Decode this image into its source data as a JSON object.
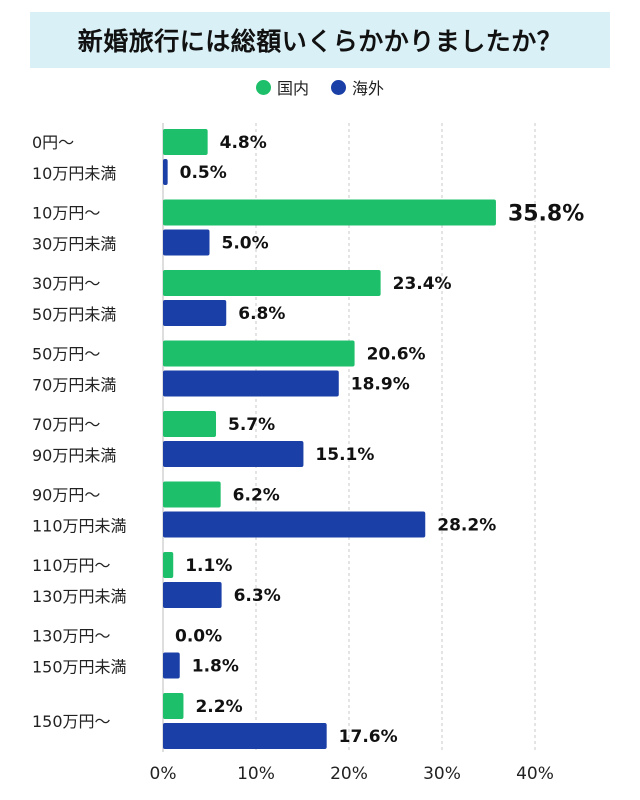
{
  "chart_data": {
    "type": "bar",
    "orientation": "horizontal",
    "title": "新婚旅行には総額いくらかかりましたか？",
    "categories": [
      [
        "0円～",
        "10万円未満"
      ],
      [
        "10万円～",
        "30万円未満"
      ],
      [
        "30万円～",
        "50万円未満"
      ],
      [
        "50万円～",
        "70万円未満"
      ],
      [
        "70万円～",
        "90万円未満"
      ],
      [
        "90万円～",
        "110万円未満"
      ],
      [
        "110万円～",
        "130万円未満"
      ],
      [
        "130万円～",
        "150万円未満"
      ],
      [
        "150万円～"
      ]
    ],
    "series": [
      {
        "name": "国内",
        "color": "#1dbf6a",
        "values": [
          4.8,
          35.8,
          23.4,
          20.6,
          5.7,
          6.2,
          1.1,
          0.0,
          2.2
        ],
        "labels": [
          "4.8%",
          "35.8%",
          "23.4%",
          "20.6%",
          "5.7%",
          "6.2%",
          "1.1%",
          "0.0%",
          "2.2%"
        ]
      },
      {
        "name": "海外",
        "color": "#1a3fa6",
        "values": [
          0.5,
          5.0,
          6.8,
          18.9,
          15.1,
          28.2,
          6.3,
          1.8,
          17.6
        ],
        "labels": [
          "0.5%",
          "5.0%",
          "6.8%",
          "18.9%",
          "15.1%",
          "28.2%",
          "6.3%",
          "1.8%",
          "17.6%"
        ]
      }
    ],
    "highlight_label": "35.8%",
    "xlim": [
      0,
      40
    ],
    "xticks": [
      "0%",
      "10%",
      "20%",
      "30%",
      "40%"
    ],
    "grid": "vertical-dashed",
    "legend_position": "top"
  }
}
